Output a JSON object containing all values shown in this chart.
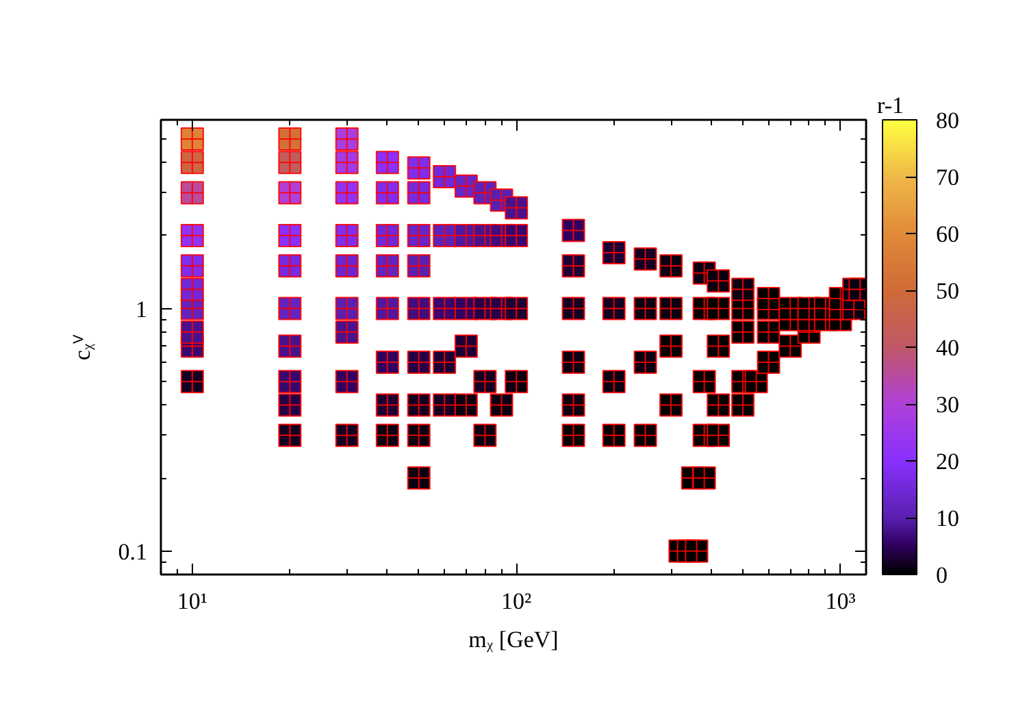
{
  "chart_data": {
    "type": "scatter",
    "xlabel": "mᵪ [GeV]",
    "ylabel": "cᵪⱽ",
    "clabel": "r-1",
    "log": "xy",
    "grid": false,
    "marker": "cross",
    "xlim": [
      8,
      1200
    ],
    "ylim": [
      0.08,
      6
    ],
    "xticks": [
      {
        "value": 9,
        "label": null
      },
      {
        "value": 10,
        "label": "10¹"
      },
      {
        "value": 20,
        "label": null
      },
      {
        "value": 30,
        "label": null
      },
      {
        "value": 40,
        "label": null
      },
      {
        "value": 50,
        "label": null
      },
      {
        "value": 60,
        "label": null
      },
      {
        "value": 70,
        "label": null
      },
      {
        "value": 80,
        "label": null
      },
      {
        "value": 90,
        "label": null
      },
      {
        "value": 100,
        "label": "10²"
      },
      {
        "value": 200,
        "label": null
      },
      {
        "value": 300,
        "label": null
      },
      {
        "value": 400,
        "label": null
      },
      {
        "value": 500,
        "label": null
      },
      {
        "value": 600,
        "label": null
      },
      {
        "value": 700,
        "label": null
      },
      {
        "value": 800,
        "label": null
      },
      {
        "value": 900,
        "label": null
      },
      {
        "value": 1000,
        "label": "10³"
      }
    ],
    "yticks": [
      {
        "value": 0.09,
        "label": null
      },
      0.1,
      {
        "value": 0.2,
        "label": null
      },
      {
        "value": 0.3,
        "label": null
      },
      {
        "value": 0.4,
        "label": null
      },
      {
        "value": 0.5,
        "label": null
      },
      {
        "value": 0.6,
        "label": null
      },
      {
        "value": 0.7,
        "label": null
      },
      {
        "value": 0.8,
        "label": null
      },
      {
        "value": 0.9,
        "label": null
      },
      1,
      {
        "value": 2,
        "label": null
      },
      {
        "value": 3,
        "label": null
      },
      {
        "value": 4,
        "label": null
      },
      {
        "value": 5,
        "label": null
      }
    ],
    "clim": [
      0,
      80
    ],
    "cticks": [
      0,
      10,
      20,
      30,
      40,
      50,
      60,
      70,
      80
    ],
    "series": [
      {
        "color": "#ff0000",
        "x": [
          10,
          10,
          10,
          10,
          10,
          10,
          10,
          10,
          10,
          10,
          20,
          20,
          20,
          20,
          20,
          20,
          20,
          20,
          20,
          20,
          30,
          30,
          30,
          30,
          30,
          30,
          30,
          30,
          30,
          40,
          40,
          40,
          40,
          40,
          40,
          40,
          40,
          50,
          50,
          50,
          50,
          50,
          50,
          50,
          50,
          50,
          60,
          60,
          60,
          60,
          60,
          70,
          70,
          70,
          70,
          70,
          80,
          80,
          80,
          80,
          80,
          90,
          90,
          90,
          90,
          100,
          100,
          100,
          100,
          150,
          150,
          150,
          150,
          150,
          150,
          200,
          200,
          200,
          200,
          250,
          250,
          250,
          250,
          300,
          300,
          300,
          300,
          320,
          340,
          360,
          350,
          380,
          380,
          380,
          380,
          380,
          420,
          420,
          420,
          420,
          420,
          500,
          500,
          500,
          500,
          500,
          550,
          600,
          600,
          600,
          600,
          700,
          700,
          700,
          800,
          800,
          800,
          900,
          900,
          1000,
          1000,
          1000,
          1100,
          1100,
          1100,
          1150
        ],
        "values": [
          0.5,
          0.7,
          0.8,
          1.0,
          1.2,
          1.5,
          2,
          3,
          4,
          5,
          0.3,
          0.4,
          0.5,
          0.7,
          1.0,
          1.5,
          2,
          3,
          4,
          5,
          0.3,
          0.5,
          0.8,
          1.0,
          1.5,
          2,
          3,
          4,
          5,
          0.3,
          0.4,
          0.6,
          1.0,
          1.5,
          2,
          3,
          4,
          0.2,
          0.3,
          0.4,
          0.6,
          1.0,
          1.5,
          2,
          3,
          3.8,
          0.4,
          0.6,
          1.0,
          2,
          3.5,
          0.4,
          0.7,
          1.0,
          2,
          3.2,
          0.3,
          0.5,
          1.0,
          2,
          3,
          0.4,
          1.0,
          2,
          2.8,
          0.5,
          1.0,
          2,
          2.6,
          0.3,
          0.4,
          0.6,
          1.0,
          1.5,
          2.1,
          0.3,
          0.5,
          1.0,
          1.7,
          0.3,
          0.6,
          1.0,
          1.6,
          0.4,
          0.7,
          1.0,
          1.5,
          0.1,
          0.1,
          0.1,
          0.2,
          0.2,
          0.3,
          0.5,
          1.0,
          1.4,
          0.3,
          0.4,
          0.7,
          1.0,
          1.3,
          0.4,
          0.5,
          0.8,
          1.0,
          1.2,
          0.5,
          0.6,
          0.8,
          1.0,
          1.1,
          0.7,
          0.9,
          1.0,
          0.8,
          0.9,
          1.0,
          0.9,
          1.0,
          0.9,
          1.0,
          1.1,
          1.0,
          1.1,
          1.2,
          1.2
        ],
        "cvalues": [
          2,
          6,
          8,
          12,
          15,
          18,
          22,
          35,
          48,
          58,
          2,
          4,
          6,
          8,
          12,
          16,
          20,
          30,
          42,
          52,
          2,
          5,
          8,
          10,
          14,
          18,
          22,
          26,
          28,
          1,
          3,
          5,
          9,
          12,
          15,
          18,
          20,
          1,
          1,
          2,
          4,
          7,
          10,
          13,
          16,
          18,
          2,
          3,
          6,
          11,
          15,
          1,
          3,
          5,
          9,
          13,
          1,
          2,
          4,
          8,
          11,
          1,
          4,
          7,
          10,
          1,
          3,
          6,
          8,
          0,
          1,
          1,
          2,
          3,
          5,
          0,
          1,
          2,
          3,
          0,
          1,
          1,
          2,
          0,
          0,
          1,
          1,
          0,
          0,
          0,
          0,
          0,
          0,
          0,
          0,
          1,
          0,
          0,
          0,
          0,
          1,
          0,
          0,
          0,
          0,
          1,
          0,
          0,
          0,
          0,
          0,
          0,
          0,
          0,
          0,
          0,
          0,
          0,
          0,
          0,
          0,
          0,
          1,
          1,
          1,
          1
        ]
      }
    ]
  }
}
